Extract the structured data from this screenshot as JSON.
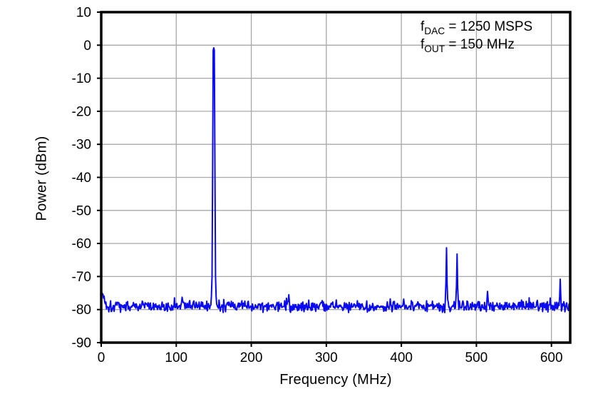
{
  "chart_data": {
    "type": "line",
    "title": "",
    "xlabel": "Frequency (MHz)",
    "ylabel": "Power (dBm)",
    "xlim": [
      0,
      625
    ],
    "ylim": [
      -90,
      10
    ],
    "xticks": [
      0,
      100,
      200,
      300,
      400,
      500,
      600
    ],
    "yticks": [
      10,
      0,
      -10,
      -20,
      -30,
      -40,
      -50,
      -60,
      -70,
      -80,
      -90
    ],
    "grid": true,
    "legend_position": "none",
    "colors": {
      "line": "#0a0af0",
      "grid": "#a8a8a8",
      "frame": "#000000",
      "background": "#ffffff",
      "text": "#000000"
    },
    "annotation": {
      "lines": [
        {
          "base": "f",
          "sub": "DAC",
          "rest": " = 1250 MSPS"
        },
        {
          "base": "f",
          "sub": "OUT",
          "rest": " = 150 MHz"
        }
      ]
    },
    "noise": {
      "seed": 1337,
      "points": 800,
      "floor_dbm": -79,
      "amplitude_db": 2.0,
      "spike_prob": 0.03,
      "spike_db": 3.5,
      "edge_transient_mhz": 8,
      "edge_transient_db": 4.5
    },
    "peaks": [
      {
        "name": "fundamental",
        "freq_mhz": 150,
        "power_dbm": -0.8,
        "levels": [
          -0.8,
          -1.5,
          -39,
          -70,
          -76
        ]
      },
      {
        "name": "spur-1",
        "freq_mhz": 460,
        "power_dbm": -61.3,
        "levels": [
          -61.3,
          -72,
          -77
        ]
      },
      {
        "name": "spur-2",
        "freq_mhz": 474,
        "power_dbm": -63.2,
        "levels": [
          -63.2,
          -73,
          -77
        ]
      },
      {
        "name": "spur-3",
        "freq_mhz": 612,
        "power_dbm": -70.8,
        "levels": [
          -70.8,
          -76
        ]
      },
      {
        "name": "minor-spur-1",
        "freq_mhz": 250,
        "power_dbm": -75.5,
        "levels": [
          -75.5,
          -77.5
        ]
      },
      {
        "name": "minor-spur-2",
        "freq_mhz": 515,
        "power_dbm": -74.5,
        "levels": [
          -74.5,
          -77
        ]
      }
    ]
  }
}
